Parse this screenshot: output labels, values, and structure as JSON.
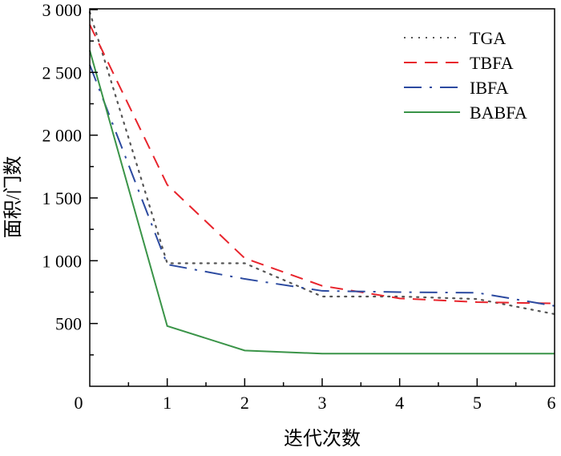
{
  "chart_data": {
    "type": "line",
    "title": "",
    "xlabel": "迭代次数",
    "ylabel": "面积/门数",
    "x": [
      0,
      1,
      2,
      3,
      4,
      5,
      6
    ],
    "xlim": [
      0,
      6
    ],
    "ylim": [
      0,
      3000
    ],
    "xticks": [
      "0",
      "1",
      "2",
      "3",
      "4",
      "5",
      "6"
    ],
    "yticks": [
      {
        "value": 500,
        "label": "500"
      },
      {
        "value": 1000,
        "label": "1 000"
      },
      {
        "value": 1500,
        "label": "1 500"
      },
      {
        "value": 2000,
        "label": "2 000"
      },
      {
        "value": 2500,
        "label": "2 500"
      },
      {
        "value": 3000,
        "label": "3 000"
      }
    ],
    "grid": false,
    "legend_position": "top-right",
    "series": [
      {
        "name": "TGA",
        "color": "#555555",
        "dash": "2,7",
        "values": [
          2980,
          980,
          980,
          715,
          715,
          695,
          575
        ]
      },
      {
        "name": "TBFA",
        "color": "#e8242c",
        "dash": "16,10",
        "values": [
          2880,
          1605,
          1020,
          800,
          700,
          670,
          660
        ]
      },
      {
        "name": "IBFA",
        "color": "#2c4aa0",
        "dash": "22,10,3,10",
        "values": [
          2560,
          970,
          855,
          760,
          750,
          745,
          640
        ]
      },
      {
        "name": "BABFA",
        "color": "#3a9448",
        "dash": "",
        "values": [
          2675,
          480,
          285,
          260,
          260,
          260,
          260
        ]
      }
    ]
  }
}
